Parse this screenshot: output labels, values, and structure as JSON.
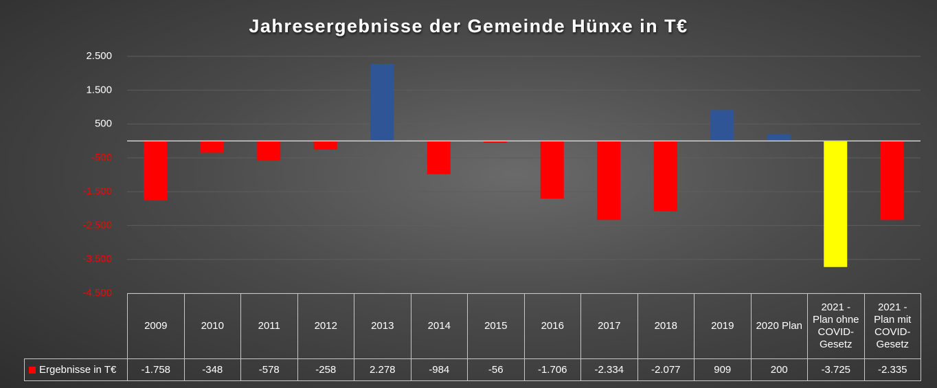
{
  "chart_data": {
    "type": "bar",
    "title": "Jahresergebnisse der Gemeinde Hünxe in T€",
    "categories": [
      "2009",
      "2010",
      "2011",
      "2012",
      "2013",
      "2014",
      "2015",
      "2016",
      "2017",
      "2018",
      "2019",
      "2020 Plan",
      "2021 - Plan ohne COVID-Gesetz",
      "2021 - Plan mit COVID-Gesetz"
    ],
    "series": [
      {
        "name": "Ergebnisse in T€",
        "color": "#ff0000",
        "values": [
          -1758,
          -348,
          -578,
          -258,
          2278,
          -984,
          -56,
          -1706,
          -2334,
          -2077,
          909,
          200,
          -3725,
          -2335
        ],
        "value_labels": [
          "-1.758",
          "-348",
          "-578",
          "-258",
          "2.278",
          "-984",
          "-56",
          "-1.706",
          "-2.334",
          "-2.077",
          "909",
          "200",
          "-3.725",
          "-2.335"
        ],
        "colors": [
          "#ff0000",
          "#ff0000",
          "#ff0000",
          "#ff0000",
          "#2f5597",
          "#ff0000",
          "#ff0000",
          "#ff0000",
          "#ff0000",
          "#ff0000",
          "#2f5597",
          "#2f5597",
          "#ffff00",
          "#ff0000"
        ]
      }
    ],
    "ylim": [
      -4500,
      2500
    ],
    "yticks": [
      {
        "value": 2500,
        "label": "2.500"
      },
      {
        "value": 1500,
        "label": "1.500"
      },
      500,
      -500,
      {
        "value": -1500,
        "label": "-1.500"
      },
      {
        "value": -2500,
        "label": "-2.500"
      },
      {
        "value": -3500,
        "label": "-3.500"
      },
      {
        "value": -4500,
        "label": "-4.500"
      }
    ],
    "grid": true
  }
}
